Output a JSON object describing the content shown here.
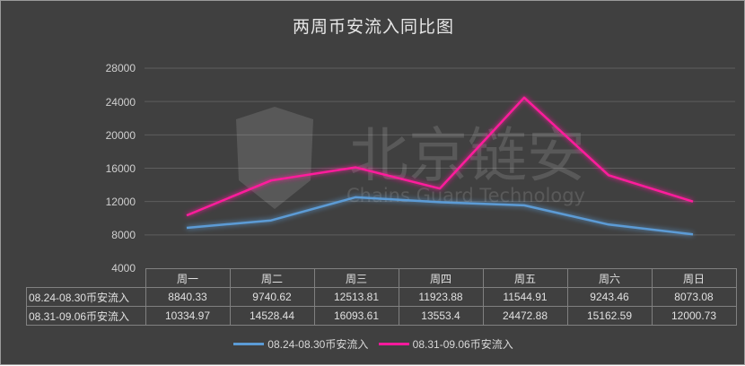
{
  "chart_data": {
    "type": "line",
    "title": "两周币安流入同比图",
    "categories": [
      "周一",
      "周二",
      "周三",
      "周四",
      "周五",
      "周六",
      "周日"
    ],
    "series": [
      {
        "name": "08.24-08.30币安流入",
        "color": "#5b9bd5",
        "values": [
          8840.33,
          9740.62,
          12513.81,
          11923.88,
          11544.91,
          9243.46,
          8073.08
        ]
      },
      {
        "name": "08.31-09.06币安流入",
        "color": "#ff1a9c",
        "values": [
          10334.97,
          14528.44,
          16093.61,
          13553.4,
          24472.88,
          15162.59,
          12000.73
        ]
      }
    ],
    "xlabel": "",
    "ylabel": "",
    "ylim": [
      4000,
      28000
    ],
    "yticks": [
      "4000",
      "8000",
      "12000",
      "16000",
      "20000",
      "24000",
      "28000"
    ],
    "grid": true,
    "legend_position": "bottom",
    "data_table": true
  },
  "table": {
    "headers": [
      "周一",
      "周二",
      "周三",
      "周四",
      "周五",
      "周六",
      "周日"
    ],
    "rows": [
      {
        "label": "08.24-08.30币安流入",
        "cells": [
          "8840.33",
          "9740.62",
          "12513.81",
          "11923.88",
          "11544.91",
          "9243.46",
          "8073.08"
        ]
      },
      {
        "label": "08.31-09.06币安流入",
        "cells": [
          "10334.97",
          "14528.44",
          "16093.61",
          "13553.4",
          "24472.88",
          "15162.59",
          "12000.73"
        ]
      }
    ]
  },
  "legend": {
    "items": [
      {
        "label": "08.24-08.30币安流入",
        "color": "#5b9bd5"
      },
      {
        "label": "08.31-09.06币安流入",
        "color": "#ff1a9c"
      }
    ]
  },
  "watermark": {
    "cn": "北京链安",
    "en": "Chains Guard Technology"
  }
}
